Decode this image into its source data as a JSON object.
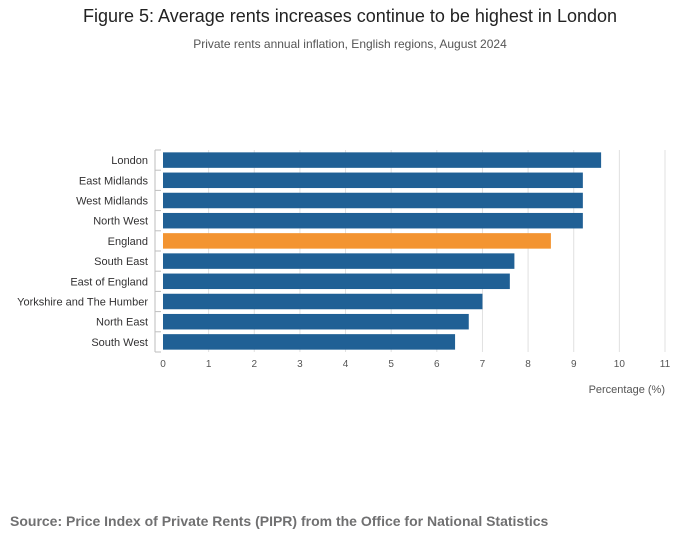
{
  "chart_data": {
    "type": "bar",
    "orientation": "horizontal",
    "title": "Figure 5: Average rents increases continue to be highest in London",
    "subtitle": "Private rents annual inflation, English regions, August 2024",
    "categories": [
      "London",
      "East Midlands",
      "West Midlands",
      "North West",
      "England",
      "South East",
      "East of England",
      "Yorkshire and The Humber",
      "North East",
      "South West"
    ],
    "values": [
      9.6,
      9.2,
      9.2,
      9.2,
      8.5,
      7.7,
      7.6,
      7.0,
      6.7,
      6.4
    ],
    "highlight": "England",
    "xlabel": "Percentage (%)",
    "ylabel": "",
    "xlim": [
      0,
      11
    ],
    "xticks": [
      0,
      1,
      2,
      3,
      4,
      5,
      6,
      7,
      8,
      9,
      10,
      11
    ],
    "grid": true,
    "colors": {
      "default": "#206095",
      "highlight": "#f39431",
      "grid": "#e0e0e0",
      "axis": "#bebebe"
    }
  },
  "source": "Source: Price Index of Private Rents (PIPR) from the Office for National Statistics"
}
